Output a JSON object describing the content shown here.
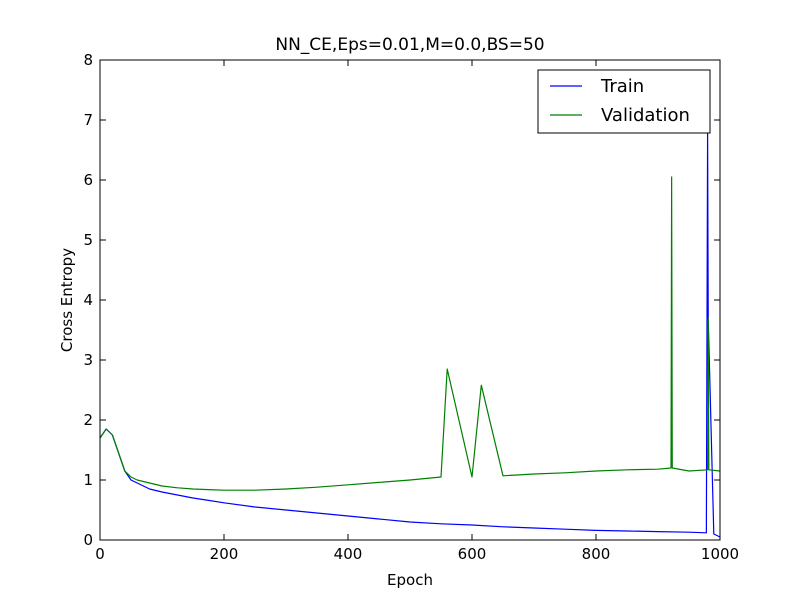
{
  "chart_data": {
    "type": "line",
    "title": "NN_CE,Eps=0.01,M=0.0,BS=50",
    "xlabel": "Epoch",
    "ylabel": "Cross Entropy",
    "xlim": [
      0,
      1000
    ],
    "ylim": [
      0,
      8
    ],
    "xticks": [
      "0",
      "200",
      "400",
      "600",
      "800",
      "1000"
    ],
    "yticks": [
      "0",
      "1",
      "2",
      "3",
      "4",
      "5",
      "6",
      "7",
      "8"
    ],
    "grid": false,
    "legend": "top-right",
    "series": [
      {
        "name": "Train",
        "color": "#0000ff",
        "x": [
          0,
          10,
          20,
          30,
          40,
          50,
          60,
          80,
          100,
          125,
          150,
          175,
          200,
          250,
          300,
          350,
          400,
          450,
          500,
          550,
          600,
          650,
          700,
          750,
          800,
          850,
          900,
          950,
          978,
          980,
          981,
          990,
          1000
        ],
        "y": [
          1.7,
          1.85,
          1.75,
          1.45,
          1.15,
          1.0,
          0.95,
          0.85,
          0.8,
          0.75,
          0.7,
          0.66,
          0.62,
          0.55,
          0.5,
          0.45,
          0.4,
          0.35,
          0.3,
          0.27,
          0.25,
          0.22,
          0.2,
          0.18,
          0.16,
          0.15,
          0.14,
          0.13,
          0.12,
          6.8,
          3.7,
          0.1,
          0.05
        ]
      },
      {
        "name": "Validation",
        "color": "#008000",
        "x": [
          0,
          10,
          20,
          30,
          40,
          50,
          60,
          80,
          100,
          125,
          150,
          175,
          200,
          250,
          300,
          350,
          400,
          450,
          500,
          550,
          560,
          600,
          615,
          650,
          700,
          750,
          800,
          850,
          900,
          921,
          922,
          923,
          950,
          980,
          981,
          982,
          1000
        ],
        "y": [
          1.7,
          1.85,
          1.75,
          1.45,
          1.15,
          1.05,
          1.0,
          0.95,
          0.9,
          0.87,
          0.85,
          0.84,
          0.83,
          0.83,
          0.85,
          0.88,
          0.92,
          0.96,
          1.0,
          1.05,
          2.85,
          1.05,
          2.58,
          1.07,
          1.1,
          1.12,
          1.15,
          1.17,
          1.18,
          1.2,
          6.05,
          1.2,
          1.15,
          1.17,
          3.7,
          1.17,
          1.15
        ]
      }
    ]
  }
}
